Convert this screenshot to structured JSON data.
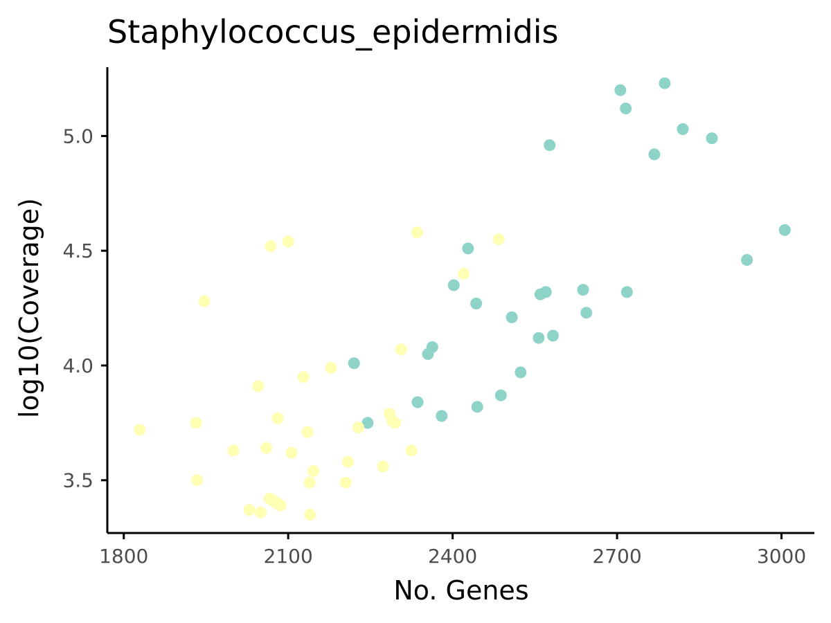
{
  "chart_data": {
    "type": "scatter",
    "title": "Staphylococcus_epidermidis",
    "xlabel": "No. Genes",
    "ylabel": "log10(Coverage)",
    "xlim": [
      1770,
      3060
    ],
    "ylim": [
      3.27,
      5.3
    ],
    "xticks": [
      1800,
      2100,
      2400,
      2700,
      3000
    ],
    "yticks": [
      3.5,
      4.0,
      4.5,
      5.0
    ],
    "ytick_labels": [
      "3.5",
      "4.0",
      "4.5",
      "5.0"
    ],
    "grid": false,
    "series": [
      {
        "color": "#8dd3c7",
        "points": [
          [
            2220,
            4.01
          ],
          [
            2245,
            3.75
          ],
          [
            2336,
            3.84
          ],
          [
            2355,
            4.05
          ],
          [
            2363,
            4.08
          ],
          [
            2380,
            3.78
          ],
          [
            2402,
            4.35
          ],
          [
            2428,
            4.51
          ],
          [
            2443,
            4.27
          ],
          [
            2445,
            3.82
          ],
          [
            2488,
            3.87
          ],
          [
            2508,
            4.21
          ],
          [
            2524,
            3.97
          ],
          [
            2557,
            4.12
          ],
          [
            2560,
            4.31
          ],
          [
            2570,
            4.32
          ],
          [
            2577,
            4.96
          ],
          [
            2583,
            4.13
          ],
          [
            2638,
            4.33
          ],
          [
            2644,
            4.23
          ],
          [
            2706,
            5.2
          ],
          [
            2716,
            5.12
          ],
          [
            2718,
            4.32
          ],
          [
            2768,
            4.92
          ],
          [
            2787,
            5.23
          ],
          [
            2820,
            5.03
          ],
          [
            2873,
            4.99
          ],
          [
            2937,
            4.46
          ],
          [
            3006,
            4.59
          ]
        ]
      },
      {
        "color": "#ffffb3",
        "points": [
          [
            1829,
            3.72
          ],
          [
            1932,
            3.75
          ],
          [
            1934,
            3.5
          ],
          [
            1947,
            4.28
          ],
          [
            2000,
            3.63
          ],
          [
            2029,
            3.37
          ],
          [
            2045,
            3.91
          ],
          [
            2050,
            3.36
          ],
          [
            2060,
            3.64
          ],
          [
            2066,
            3.42
          ],
          [
            2068,
            4.52
          ],
          [
            2073,
            3.41
          ],
          [
            2080,
            3.4
          ],
          [
            2081,
            3.77
          ],
          [
            2086,
            3.39
          ],
          [
            2100,
            4.54
          ],
          [
            2106,
            3.62
          ],
          [
            2128,
            3.95
          ],
          [
            2135,
            3.71
          ],
          [
            2139,
            3.49
          ],
          [
            2140,
            3.35
          ],
          [
            2146,
            3.54
          ],
          [
            2178,
            3.99
          ],
          [
            2205,
            3.49
          ],
          [
            2209,
            3.58
          ],
          [
            2228,
            3.73
          ],
          [
            2273,
            3.56
          ],
          [
            2285,
            3.79
          ],
          [
            2290,
            3.76
          ],
          [
            2295,
            3.75
          ],
          [
            2306,
            4.07
          ],
          [
            2325,
            3.63
          ],
          [
            2335,
            4.58
          ],
          [
            2420,
            4.4
          ],
          [
            2484,
            4.55
          ]
        ]
      }
    ]
  }
}
